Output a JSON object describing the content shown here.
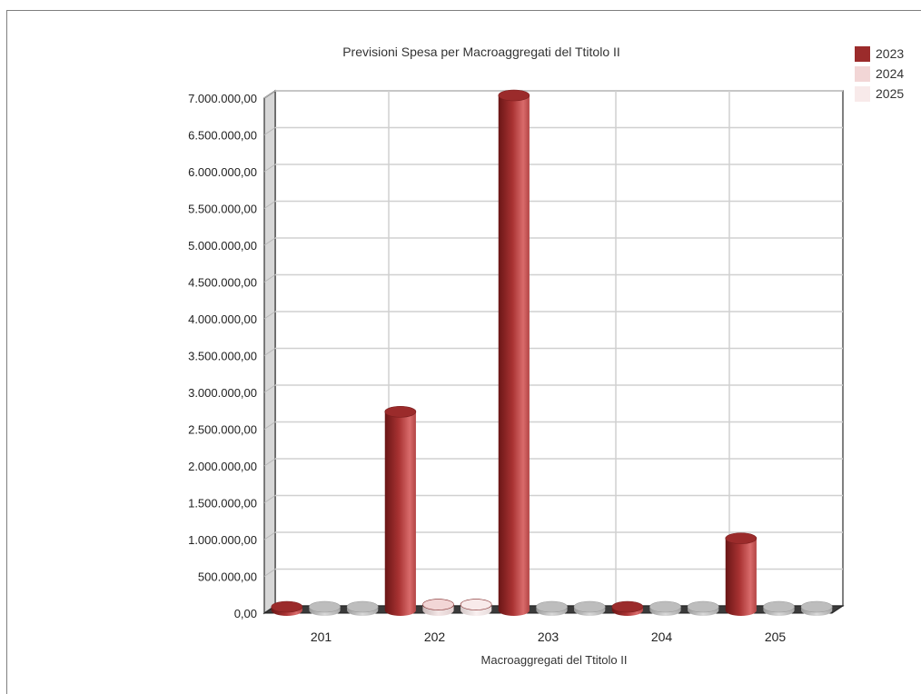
{
  "chart_data": {
    "type": "bar",
    "title": "Previsioni Spesa per Macroaggregati del Ttitolo II",
    "xlabel": "Macroaggregati del Ttitolo II",
    "ylabel": "",
    "categories": [
      "201",
      "202",
      "203",
      "204",
      "205"
    ],
    "ylim": [
      0,
      7000000
    ],
    "y_ticks": [
      0,
      500000,
      1000000,
      1500000,
      2000000,
      2500000,
      3000000,
      3500000,
      4000000,
      4500000,
      5000000,
      5500000,
      6000000,
      6500000,
      7000000
    ],
    "y_tick_labels": [
      "0,00",
      "500.000,00",
      "1.000.000,00",
      "1.500.000,00",
      "2.000.000,00",
      "2.500.000,00",
      "3.000.000,00",
      "3.500.000,00",
      "4.000.000,00",
      "4.500.000,00",
      "5.000.000,00",
      "5.500.000,00",
      "6.000.000,00",
      "6.500.000,00",
      "7.000.000,00"
    ],
    "grid": true,
    "legend_position": "top-right",
    "style": "3d-cylinder",
    "series": [
      {
        "name": "2023",
        "color": "#9b2b2b",
        "values": [
          20000,
          2700000,
          7000000,
          20000,
          980000
        ]
      },
      {
        "name": "2024",
        "color": "#f2d6d6",
        "values": [
          0,
          80000,
          0,
          0,
          0
        ]
      },
      {
        "name": "2025",
        "color": "#f8eaea",
        "values": [
          0,
          80000,
          0,
          0,
          0
        ]
      }
    ]
  }
}
